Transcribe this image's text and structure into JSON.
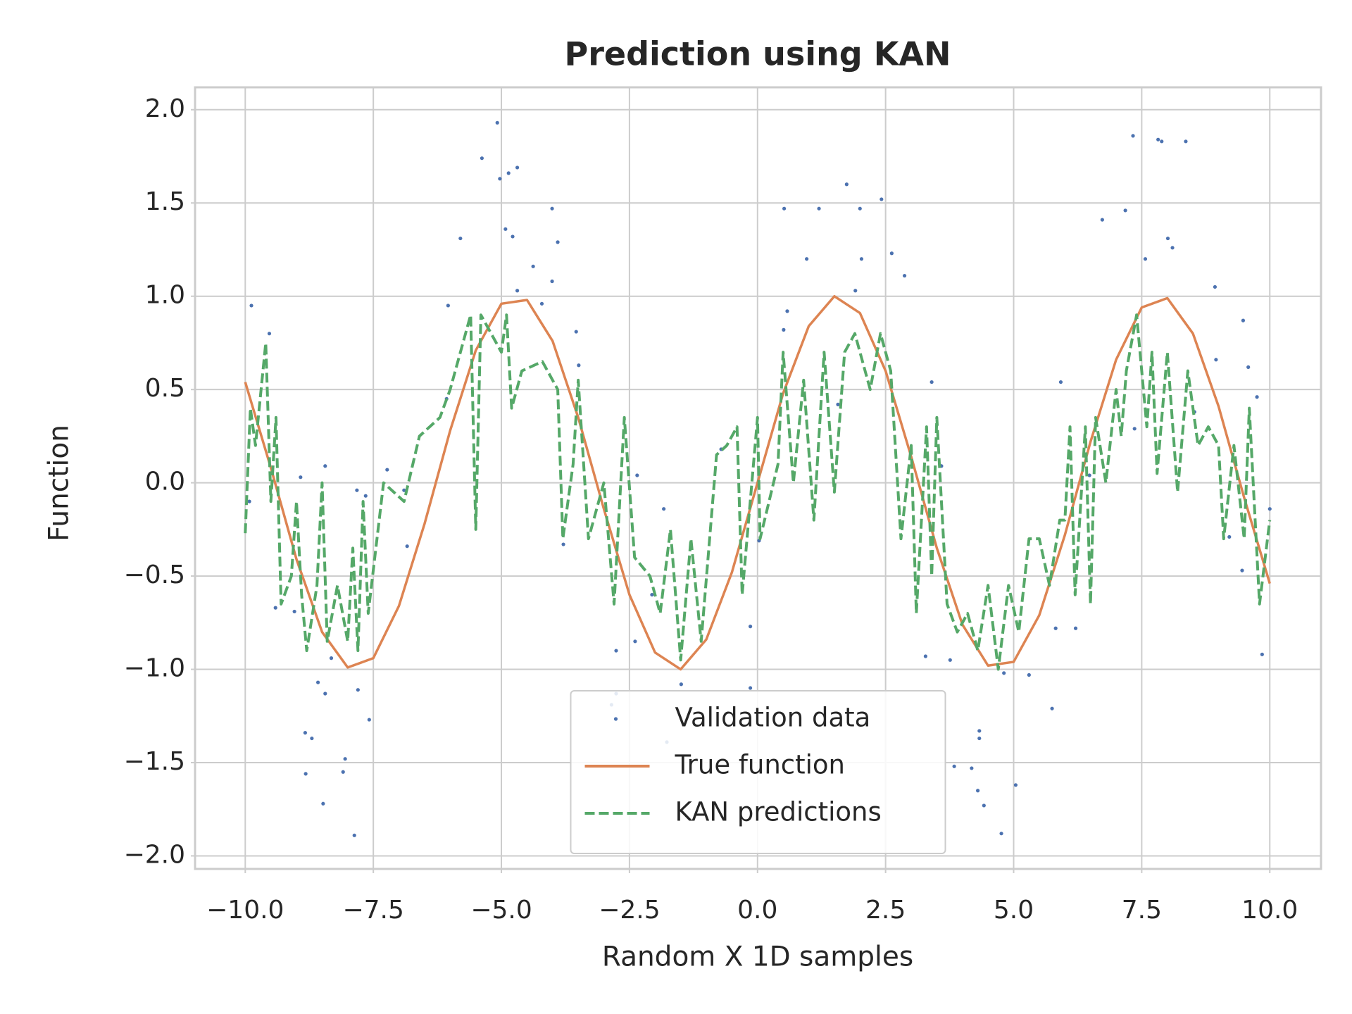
{
  "chart_data": {
    "type": "line",
    "title": "Prediction using KAN",
    "x_label": "Random X 1D samples",
    "y_label": "Function",
    "xlim": [
      -10.98,
      11.0
    ],
    "ylim": [
      -2.07,
      2.12
    ],
    "xticks": [
      {
        "value": -10,
        "label": "−10.0"
      },
      {
        "value": -7.5,
        "label": "−7.5"
      },
      {
        "value": -5,
        "label": "−5.0"
      },
      {
        "value": -2.5,
        "label": "−2.5"
      },
      {
        "value": 0,
        "label": "0.0"
      },
      {
        "value": 2.5,
        "label": "2.5"
      },
      {
        "value": 5,
        "label": "5.0"
      },
      {
        "value": 7.5,
        "label": "7.5"
      },
      {
        "value": 10,
        "label": "10.0"
      }
    ],
    "yticks": [
      {
        "value": -2,
        "label": "−2.0"
      },
      {
        "value": -1.5,
        "label": "−1.5"
      },
      {
        "value": -1,
        "label": "−1.0"
      },
      {
        "value": -0.5,
        "label": "−0.5"
      },
      {
        "value": 0,
        "label": "0.0"
      },
      {
        "value": 0.5,
        "label": "0.5"
      },
      {
        "value": 1,
        "label": "1.0"
      },
      {
        "value": 1.5,
        "label": "1.5"
      },
      {
        "value": 2,
        "label": "2.0"
      }
    ],
    "grid": true,
    "legend": "lower center",
    "series": [
      {
        "name": "Validation data",
        "color": "#4c72b0",
        "linestyle": "none",
        "x": [
          -9.88,
          -9.92,
          -9.53,
          -8.92,
          -9.41,
          -9.04,
          -8.44,
          -8.83,
          -8.7,
          -8.82,
          -8.48,
          -8.58,
          -8.44,
          -8.32,
          -8.05,
          -8.09,
          -7.87,
          -7.8,
          -7.58,
          -7.82,
          -7.65,
          -7.23,
          -6.9,
          -6.84,
          -6.04,
          -5.8,
          -6.07,
          -5.38,
          -5.08,
          -5.03,
          -4.86,
          -4.69,
          -4.92,
          -4.78,
          -4.69,
          -4.38,
          -4.21,
          -4.01,
          -4.01,
          -3.9,
          -3.54,
          -3.79,
          -3.49,
          -2.35,
          -1.83,
          -2.06,
          -2.39,
          -2.76,
          -2.76,
          -2.85,
          -1.49,
          -1.77,
          -0.14,
          -0.14,
          -0.71,
          0.03,
          0.51,
          0.58,
          0.52,
          0.96,
          1.2,
          1.74,
          2.0,
          2.03,
          1.91,
          1.57,
          2.42,
          2.62,
          2.87,
          3.4,
          3.59,
          3.28,
          3.76,
          3.84,
          4.18,
          4.33,
          4.33,
          4.3,
          4.42,
          4.76,
          4.81,
          5.04,
          5.3,
          5.75,
          5.82,
          6.21,
          5.92,
          6.48,
          6.73,
          7.18,
          7.33,
          7.57,
          7.82,
          7.89,
          8.01,
          8.1,
          8.36,
          7.36,
          8.93,
          8.95,
          9.48,
          9.58,
          9.75,
          9.46,
          9.85,
          10.0,
          8.53,
          9.21
        ],
        "values": [
          0.95,
          -0.1,
          0.8,
          0.03,
          -0.67,
          -0.69,
          0.09,
          -1.34,
          -1.37,
          -1.56,
          -1.72,
          -1.07,
          -1.13,
          -0.94,
          -1.48,
          -1.55,
          -1.89,
          -1.11,
          -1.27,
          -0.04,
          -0.07,
          0.07,
          -0.04,
          -0.34,
          0.95,
          1.31,
          0.45,
          1.74,
          1.93,
          1.63,
          1.66,
          1.69,
          1.36,
          1.32,
          1.03,
          1.16,
          0.96,
          1.08,
          1.47,
          1.29,
          0.81,
          -0.33,
          0.63,
          0.04,
          -0.14,
          -0.6,
          -0.85,
          -0.9,
          -1.13,
          -1.19,
          -1.08,
          -1.39,
          -0.77,
          -1.1,
          0.18,
          -0.31,
          0.82,
          0.92,
          1.47,
          1.2,
          1.47,
          1.6,
          1.47,
          1.2,
          1.03,
          0.42,
          1.52,
          1.23,
          1.11,
          0.54,
          0.09,
          -0.93,
          -0.95,
          -1.52,
          -1.53,
          -1.33,
          -1.37,
          -1.65,
          -1.73,
          -1.88,
          -1.02,
          -1.62,
          -1.03,
          -1.21,
          -0.78,
          -0.78,
          0.54,
          0.04,
          1.41,
          1.46,
          1.86,
          1.2,
          1.84,
          1.83,
          1.31,
          1.26,
          1.83,
          0.29,
          1.05,
          0.66,
          0.87,
          0.62,
          0.46,
          -0.47,
          -0.92,
          -0.14,
          0.38,
          -0.29
        ]
      },
      {
        "name": "True function",
        "color": "#dd8452",
        "linestyle": "solid",
        "x": [
          -10,
          -9.5,
          -9,
          -8.5,
          -8,
          -7.5,
          -7,
          -6.5,
          -6,
          -5.5,
          -5,
          -4.5,
          -4,
          -3.5,
          -3,
          -2.5,
          -2,
          -1.5,
          -1,
          -0.5,
          0,
          0.5,
          1,
          1.5,
          2,
          2.5,
          3,
          3.5,
          4,
          4.5,
          5,
          5.5,
          6,
          6.5,
          7,
          7.5,
          8,
          8.5,
          9,
          9.5,
          10
        ],
        "values": [
          0.54,
          0.08,
          -0.41,
          -0.8,
          -0.99,
          -0.94,
          -0.66,
          -0.22,
          0.28,
          0.71,
          0.96,
          0.98,
          0.76,
          0.35,
          -0.14,
          -0.6,
          -0.91,
          -1.0,
          -0.84,
          -0.48,
          0,
          0.48,
          0.84,
          1.0,
          0.91,
          0.6,
          0.14,
          -0.35,
          -0.76,
          -0.98,
          -0.96,
          -0.71,
          -0.28,
          0.22,
          0.66,
          0.94,
          0.99,
          0.8,
          0.41,
          -0.08,
          -0.54
        ]
      },
      {
        "name": "KAN predictions",
        "color": "#55a868",
        "linestyle": "dashed",
        "x": [
          -10,
          -9.9,
          -9.8,
          -9.6,
          -9.5,
          -9.4,
          -9.3,
          -9.1,
          -9.0,
          -8.9,
          -8.8,
          -8.6,
          -8.5,
          -8.4,
          -8.2,
          -8.0,
          -7.9,
          -7.8,
          -7.7,
          -7.6,
          -7.3,
          -6.9,
          -6.6,
          -6.2,
          -6.0,
          -5.6,
          -5.5,
          -5.4,
          -5.0,
          -4.9,
          -4.8,
          -4.6,
          -4.2,
          -3.9,
          -3.8,
          -3.6,
          -3.5,
          -3.3,
          -3.0,
          -2.8,
          -2.6,
          -2.4,
          -2.1,
          -1.9,
          -1.7,
          -1.5,
          -1.3,
          -1.1,
          -0.8,
          -0.6,
          -0.4,
          -0.3,
          0,
          0.05,
          0.4,
          0.5,
          0.7,
          0.9,
          1.1,
          1.3,
          1.5,
          1.7,
          1.9,
          2.2,
          2.4,
          2.6,
          2.8,
          3.0,
          3.1,
          3.3,
          3.4,
          3.5,
          3.7,
          3.9,
          4.1,
          4.3,
          4.5,
          4.7,
          4.9,
          5.1,
          5.3,
          5.5,
          5.7,
          5.9,
          6.0,
          6.1,
          6.2,
          6.4,
          6.5,
          6.6,
          6.8,
          7.0,
          7.1,
          7.2,
          7.4,
          7.6,
          7.7,
          7.8,
          8.0,
          8.2,
          8.4,
          8.6,
          8.8,
          9.0,
          9.1,
          9.3,
          9.5,
          9.6,
          9.8,
          10
        ],
        "values": [
          -0.27,
          0.4,
          0.2,
          0.75,
          -0.1,
          0.35,
          -0.65,
          -0.5,
          -0.1,
          -0.6,
          -0.9,
          -0.55,
          0,
          -0.85,
          -0.55,
          -0.85,
          -0.35,
          -0.9,
          -0.1,
          -0.7,
          0,
          -0.1,
          0.25,
          0.35,
          0.5,
          0.9,
          -0.25,
          0.9,
          0.7,
          0.9,
          0.4,
          0.6,
          0.65,
          0.5,
          -0.3,
          0.1,
          0.55,
          -0.3,
          0.0,
          -0.65,
          0.35,
          -0.4,
          -0.5,
          -0.7,
          -0.25,
          -0.95,
          -0.3,
          -0.85,
          0.15,
          0.2,
          0.3,
          -0.6,
          0.35,
          -0.3,
          0.1,
          0.7,
          0.0,
          0.55,
          -0.2,
          0.7,
          -0.05,
          0.7,
          0.8,
          0.5,
          0.8,
          0.6,
          -0.3,
          0.2,
          -0.7,
          0.3,
          -0.5,
          0.35,
          -0.65,
          -0.8,
          -0.7,
          -0.9,
          -0.55,
          -1.0,
          -0.55,
          -0.8,
          -0.3,
          -0.3,
          -0.55,
          -0.2,
          -0.2,
          0.3,
          -0.6,
          0.3,
          -0.65,
          0.35,
          0.0,
          0.5,
          0.25,
          0.6,
          0.9,
          0.3,
          0.7,
          0.05,
          0.7,
          -0.05,
          0.6,
          0.2,
          0.3,
          0.2,
          -0.3,
          0.2,
          -0.3,
          0.4,
          -0.65,
          -0.2
        ]
      }
    ]
  }
}
